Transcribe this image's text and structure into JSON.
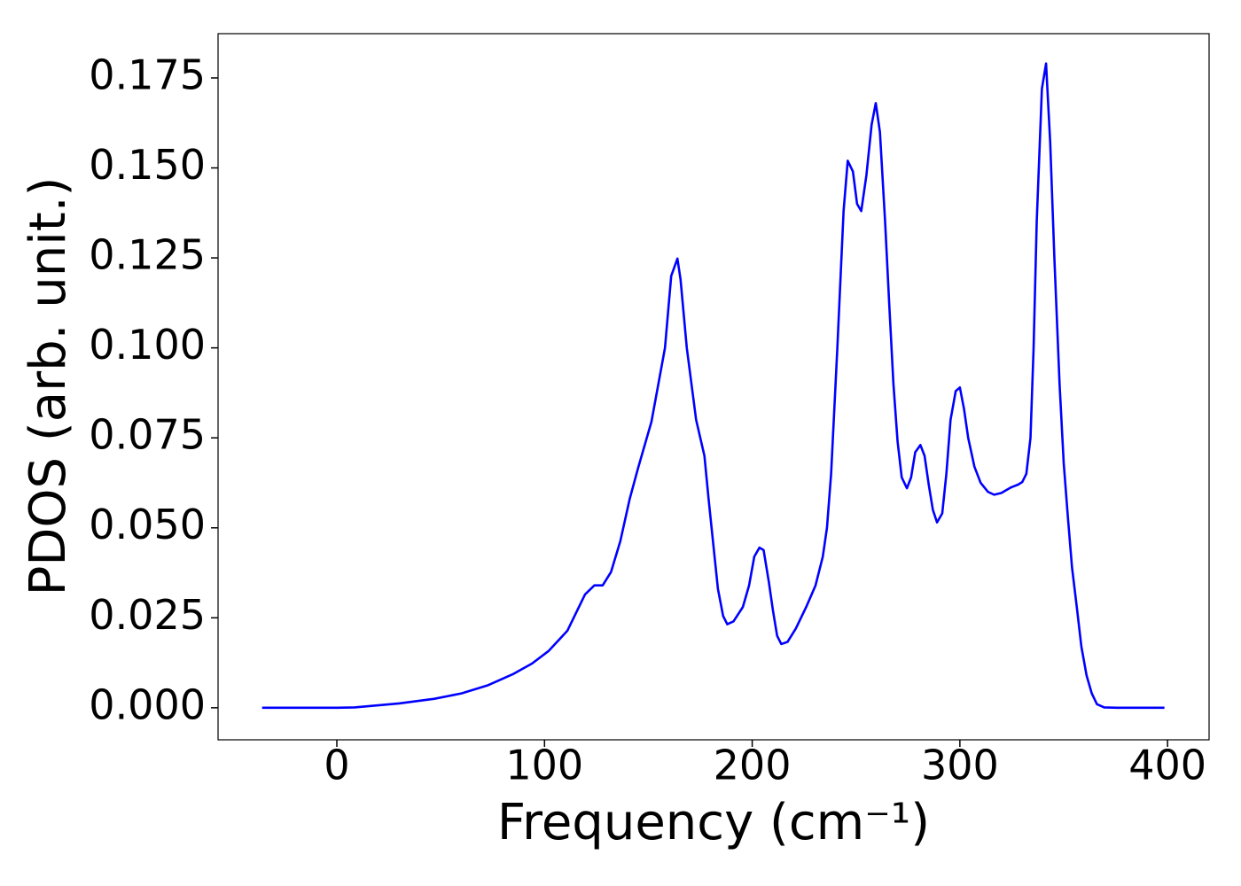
{
  "chart_data": {
    "type": "line",
    "x_label": "Frequency (cm⁻¹)",
    "y_label": "PDOS (arb. unit.)",
    "color": "#0000ff",
    "x": [
      -36,
      0,
      8.5,
      30,
      47,
      60,
      72.5,
      85,
      94,
      102,
      111,
      119.5,
      124,
      128,
      132,
      136.5,
      141,
      145,
      151.5,
      158,
      161,
      164,
      165.5,
      168.5,
      173,
      177,
      179,
      183.5,
      186,
      188,
      191,
      195.5,
      198.5,
      201,
      203.5,
      205.5,
      208,
      210,
      212,
      214,
      217,
      221,
      226,
      230.5,
      234,
      236,
      238,
      241,
      244,
      246,
      248.5,
      250.5,
      252.5,
      255,
      257.5,
      259.5,
      261.5,
      264,
      266,
      268,
      270,
      272,
      274.5,
      276.5,
      278.5,
      281,
      283,
      285,
      287,
      289,
      291.5,
      293.5,
      295.5,
      298,
      300,
      302,
      304,
      307,
      310,
      313.5,
      316.5,
      320,
      324.5,
      328,
      330,
      332,
      334,
      335.5,
      337,
      339.5,
      341.5,
      343.5,
      345.5,
      348,
      350,
      352,
      354,
      356.5,
      358.5,
      361,
      363.5,
      366,
      369.5,
      375.5,
      398.5
    ],
    "values": [
      0,
      0,
      0.0001,
      0.0012,
      0.0025,
      0.004,
      0.0062,
      0.0094,
      0.0123,
      0.0158,
      0.0214,
      0.0315,
      0.034,
      0.034,
      0.0377,
      0.0463,
      0.058,
      0.0665,
      0.0795,
      0.1,
      0.12,
      0.1248,
      0.119,
      0.1,
      0.08,
      0.07,
      0.058,
      0.033,
      0.0255,
      0.0232,
      0.024,
      0.028,
      0.034,
      0.042,
      0.0445,
      0.0438,
      0.035,
      0.027,
      0.02,
      0.0177,
      0.0183,
      0.022,
      0.028,
      0.034,
      0.042,
      0.05,
      0.065,
      0.1,
      0.138,
      0.152,
      0.149,
      0.14,
      0.138,
      0.148,
      0.162,
      0.168,
      0.16,
      0.135,
      0.112,
      0.09,
      0.074,
      0.064,
      0.061,
      0.064,
      0.071,
      0.073,
      0.07,
      0.062,
      0.055,
      0.0515,
      0.054,
      0.065,
      0.08,
      0.088,
      0.089,
      0.083,
      0.075,
      0.067,
      0.0625,
      0.06,
      0.0592,
      0.0597,
      0.0612,
      0.062,
      0.0627,
      0.065,
      0.075,
      0.1,
      0.135,
      0.172,
      0.179,
      0.157,
      0.125,
      0.09,
      0.068,
      0.053,
      0.039,
      0.027,
      0.017,
      0.009,
      0.004,
      0.001,
      0.0001,
      0,
      0
    ],
    "xlim": [
      -57.2,
      420
    ],
    "ylim": [
      -0.0089,
      0.1873
    ],
    "xticks": [
      0,
      100,
      200,
      300,
      400
    ],
    "yticks": [
      {
        "value": 0,
        "label": "0.000"
      },
      {
        "value": 0.025,
        "label": "0.025"
      },
      {
        "value": 0.05,
        "label": "0.050"
      },
      {
        "value": 0.075,
        "label": "0.075"
      },
      {
        "value": 0.1,
        "label": "0.100"
      },
      {
        "value": 0.125,
        "label": "0.125"
      },
      {
        "value": 0.15,
        "label": "0.150"
      },
      {
        "value": 0.175,
        "label": "0.175"
      }
    ]
  }
}
